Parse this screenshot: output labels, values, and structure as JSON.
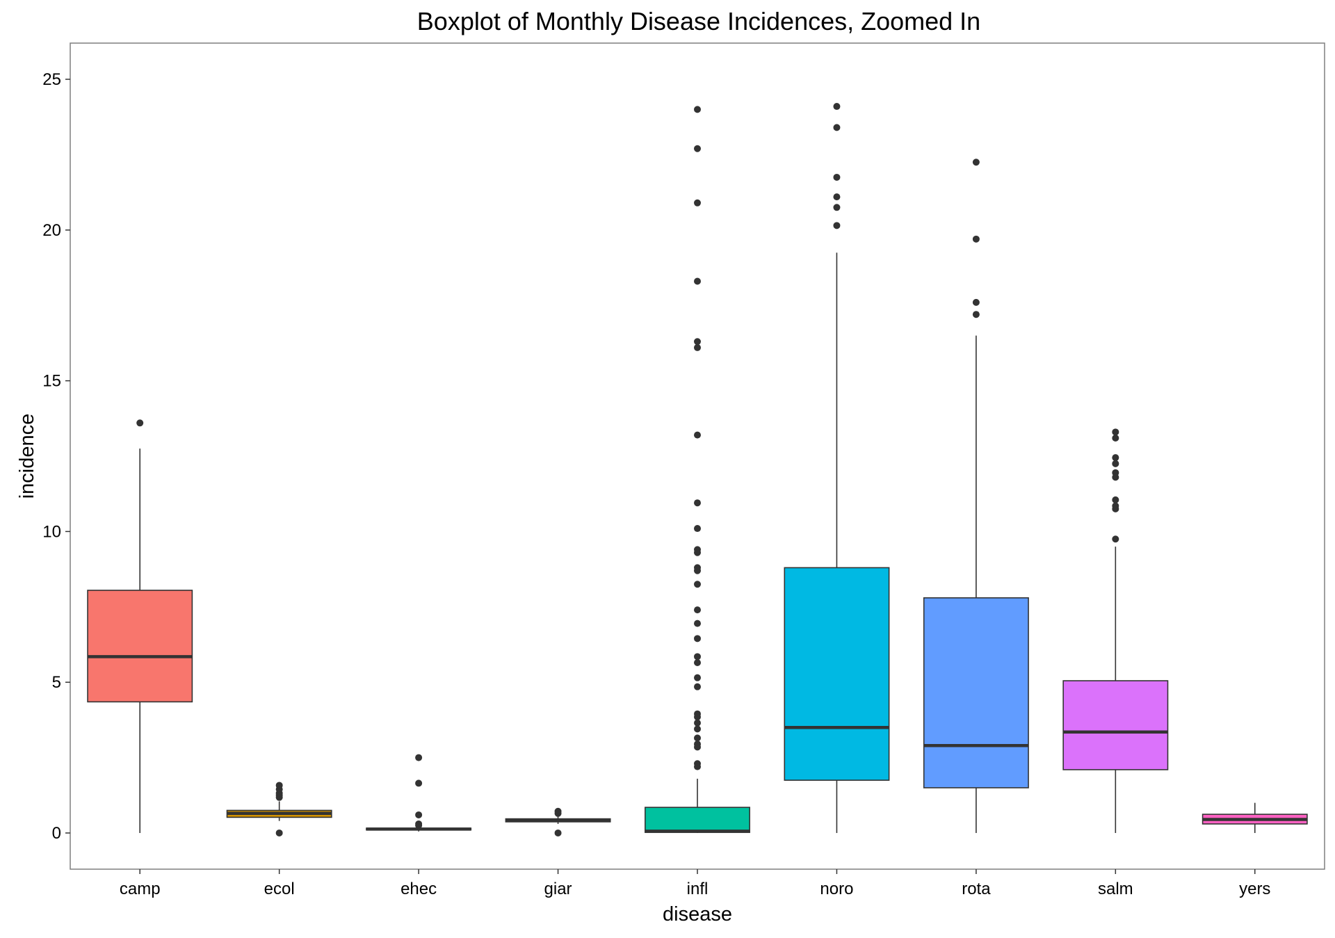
{
  "chart_data": {
    "type": "boxplot",
    "title": "Boxplot of Monthly Disease Incidences, Zoomed In",
    "xlabel": "disease",
    "ylabel": "incidence",
    "ylim": [
      -1.2,
      26.2
    ],
    "yticks": [
      0,
      5,
      10,
      15,
      20,
      25
    ],
    "grid": false,
    "legend": "none",
    "categories": [
      "camp",
      "ecol",
      "ehec",
      "giar",
      "infl",
      "noro",
      "rota",
      "salm",
      "yers"
    ],
    "colors": {
      "camp": "#F8766D",
      "ecol": "#D39200",
      "ehec": "#93AA00",
      "giar": "#00BA38",
      "infl": "#00C19F",
      "noro": "#00B9E3",
      "rota": "#619CFF",
      "salm": "#DB72FB",
      "yers": "#FF61C3"
    },
    "boxes": [
      {
        "category": "camp",
        "whisker_low": 0.0,
        "q1": 4.35,
        "median": 5.85,
        "q3": 8.05,
        "whisker_high": 12.75,
        "outliers": [
          13.6
        ]
      },
      {
        "category": "ecol",
        "whisker_low": 0.4,
        "q1": 0.52,
        "median": 0.65,
        "q3": 0.75,
        "whisker_high": 1.05,
        "outliers": [
          1.18,
          1.25,
          1.32,
          1.45,
          1.58,
          0.0
        ]
      },
      {
        "category": "ehec",
        "whisker_low": 0.05,
        "q1": 0.1,
        "median": 0.13,
        "q3": 0.16,
        "whisker_high": 0.2,
        "outliers": [
          2.5,
          1.65,
          0.6,
          0.3,
          0.25
        ]
      },
      {
        "category": "giar",
        "whisker_low": 0.3,
        "q1": 0.37,
        "median": 0.42,
        "q3": 0.47,
        "whisker_high": 0.55,
        "outliers": [
          0.72,
          0.65,
          0.0
        ]
      },
      {
        "category": "infl",
        "whisker_low": 0.0,
        "q1": 0.02,
        "median": 0.06,
        "q3": 0.85,
        "whisker_high": 1.8,
        "outliers": [
          24.0,
          22.7,
          20.9,
          18.3,
          16.3,
          16.1,
          13.2,
          10.95,
          10.1,
          9.4,
          9.3,
          8.8,
          8.7,
          8.25,
          7.4,
          6.95,
          6.45,
          5.85,
          5.65,
          5.15,
          4.85,
          3.95,
          3.85,
          3.65,
          3.45,
          3.15,
          2.95,
          2.85,
          2.3,
          2.2
        ]
      },
      {
        "category": "noro",
        "whisker_low": 0.0,
        "q1": 1.75,
        "median": 3.5,
        "q3": 8.8,
        "whisker_high": 19.25,
        "outliers": [
          24.1,
          23.4,
          21.75,
          21.1,
          20.75,
          20.15
        ]
      },
      {
        "category": "rota",
        "whisker_low": 0.0,
        "q1": 1.5,
        "median": 2.9,
        "q3": 7.8,
        "whisker_high": 16.5,
        "outliers": [
          22.25,
          19.7,
          17.6,
          17.2
        ]
      },
      {
        "category": "salm",
        "whisker_low": 0.0,
        "q1": 2.1,
        "median": 3.35,
        "q3": 5.05,
        "whisker_high": 9.5,
        "outliers": [
          13.3,
          13.1,
          12.45,
          12.25,
          11.95,
          11.8,
          11.05,
          10.85,
          10.75,
          9.75
        ]
      },
      {
        "category": "yers",
        "whisker_low": 0.0,
        "q1": 0.3,
        "median": 0.45,
        "q3": 0.62,
        "whisker_high": 1.0,
        "outliers": []
      }
    ]
  }
}
